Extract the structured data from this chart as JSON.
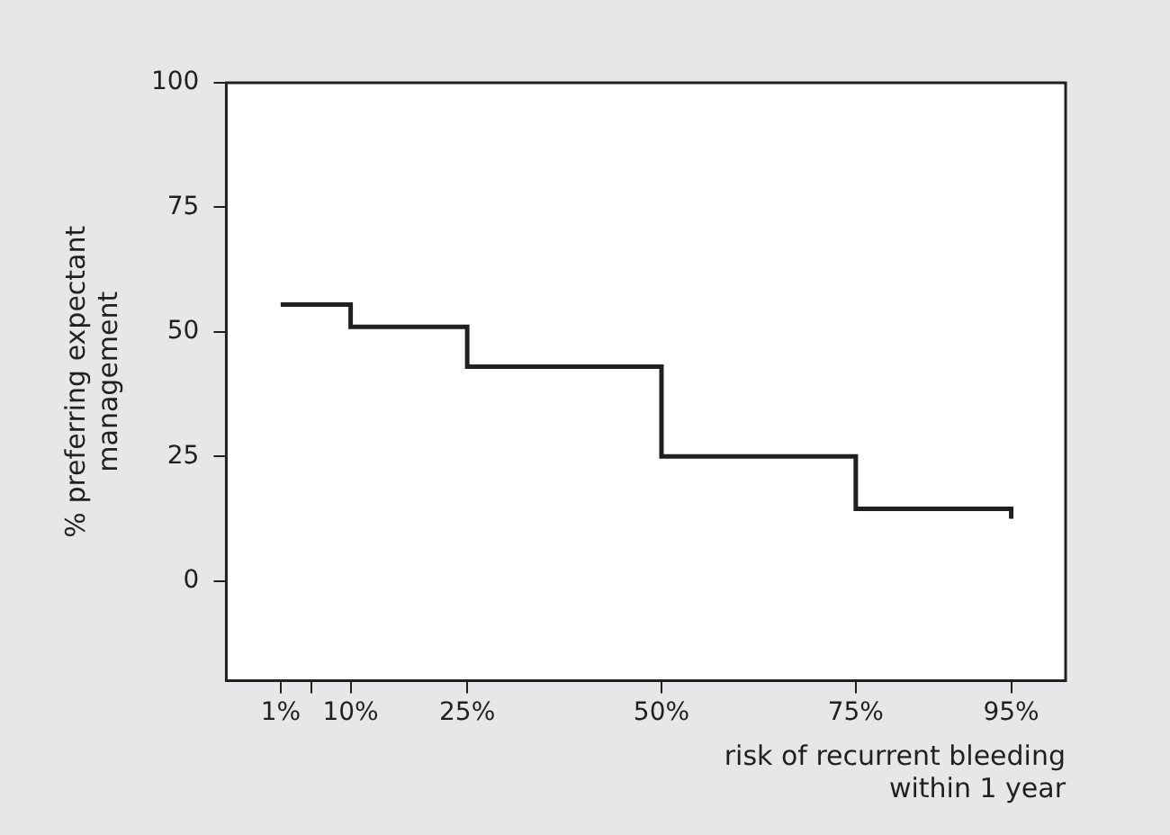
{
  "chart_data": {
    "type": "step",
    "xlabel": "risk of recurrent bleeding within 1 year",
    "ylabel": "% preferring expectant management",
    "x": [
      1,
      10,
      25,
      50,
      75,
      95
    ],
    "series": [
      {
        "color": "#231f20",
        "values": [
          55.5,
          51,
          43,
          25,
          14.5,
          12.5
        ]
      }
    ],
    "xlim": [
      -6,
      102
    ],
    "xticks": [
      {
        "value": 1,
        "label": "1%"
      },
      {
        "value": 5,
        "label": null
      },
      {
        "value": 10,
        "label": "10%"
      },
      {
        "value": 25,
        "label": "25%"
      },
      {
        "value": 50,
        "label": "50%"
      },
      {
        "value": 75,
        "label": "75%"
      },
      {
        "value": 95,
        "label": "95%"
      }
    ],
    "ylim": [
      -20,
      100
    ],
    "yticks": [
      0,
      25,
      50,
      75,
      100
    ],
    "grid": false,
    "legend": false
  }
}
